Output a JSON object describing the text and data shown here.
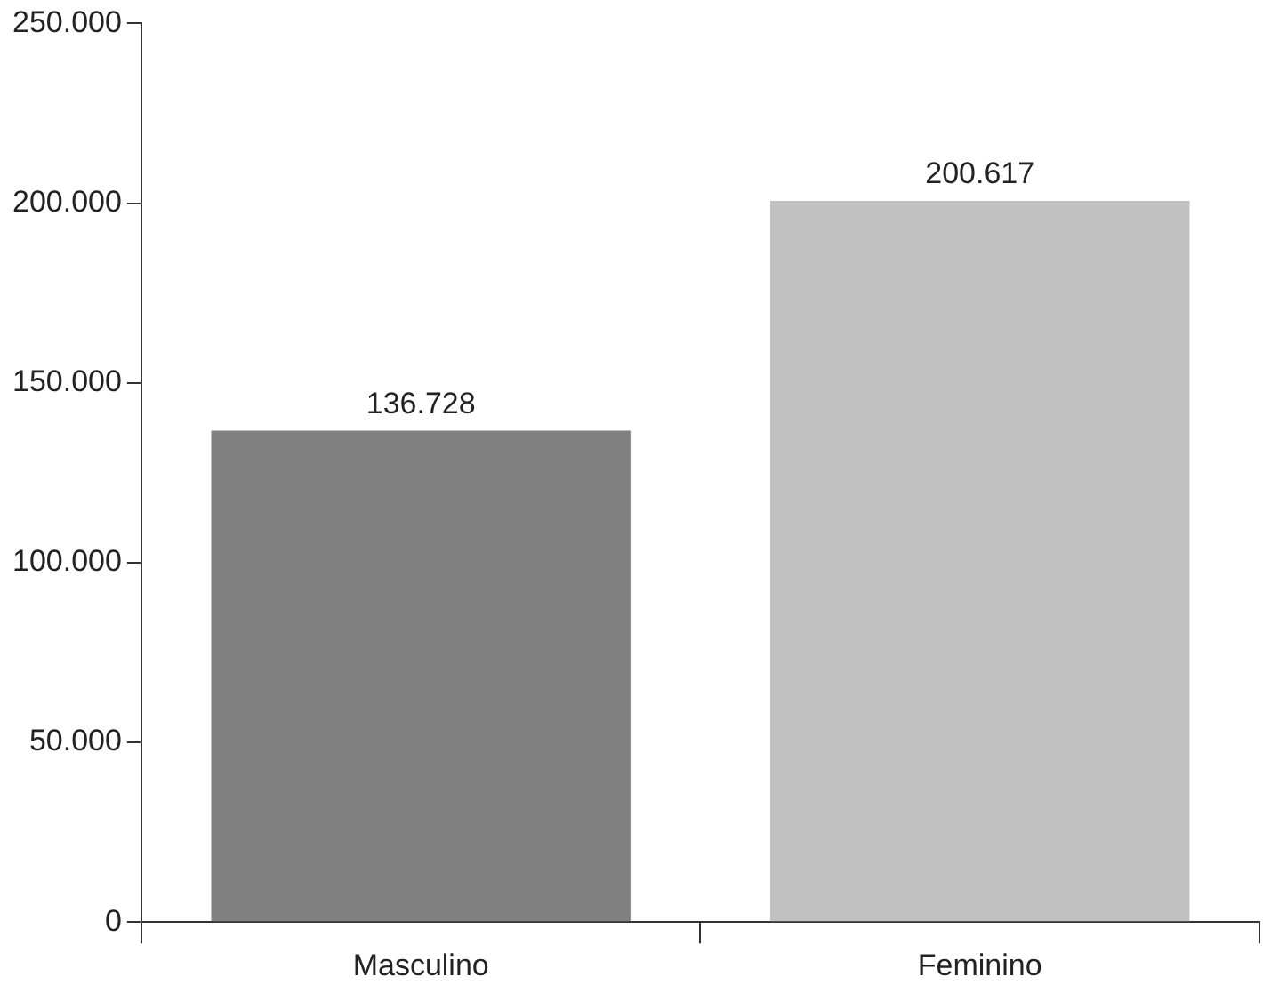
{
  "chart_data": {
    "type": "bar",
    "categories": [
      "Masculino",
      "Feminino"
    ],
    "values": [
      136728,
      200617
    ],
    "colors": [
      "#808080",
      "#c0c0c0"
    ],
    "value_labels": [
      "136.728",
      "200.617"
    ],
    "ylim": [
      0,
      250000
    ],
    "yticks": [
      {
        "value": 0,
        "label": "0"
      },
      {
        "value": 50000,
        "label": "50.000"
      },
      {
        "value": 100000,
        "label": "100.000"
      },
      {
        "value": 150000,
        "label": "150.000"
      },
      {
        "value": 200000,
        "label": "200.000"
      },
      {
        "value": 250000,
        "label": "250.000"
      }
    ],
    "grid": false,
    "legend": false
  }
}
